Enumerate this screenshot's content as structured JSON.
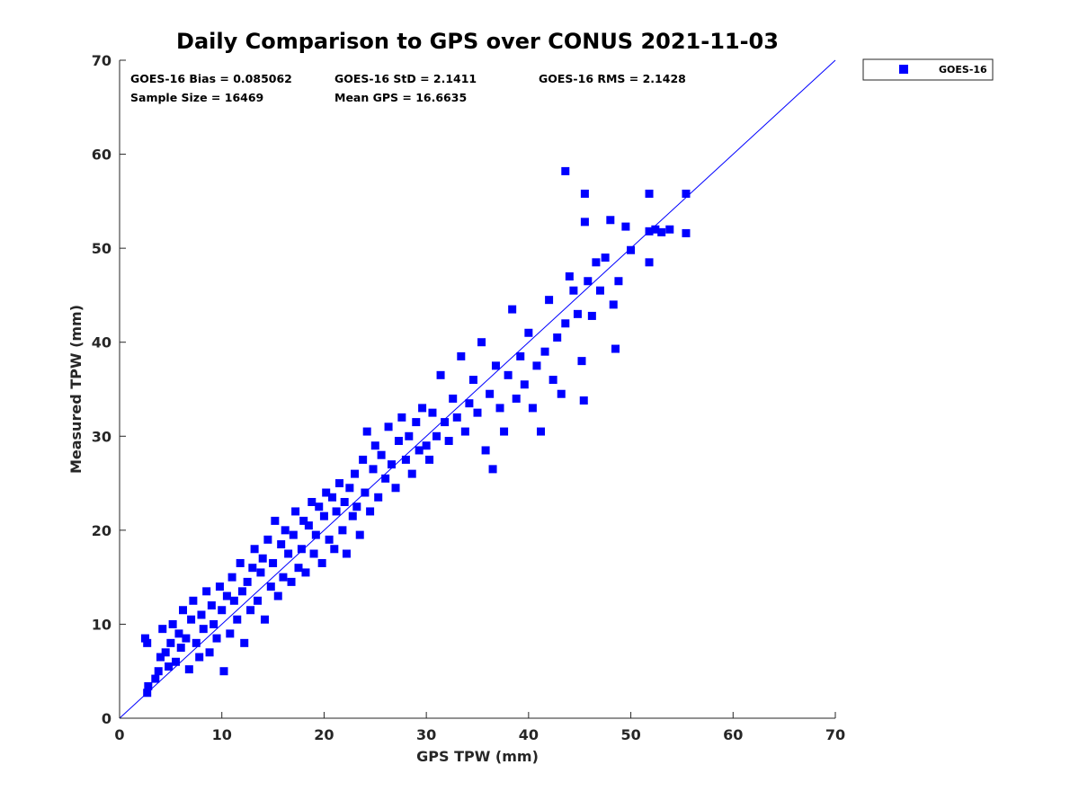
{
  "chart_data": {
    "type": "scatter",
    "title": "Daily Comparison to GPS over CONUS 2021-11-03",
    "xlabel": "GPS TPW (mm)",
    "ylabel": "Measured TPW (mm)",
    "xlim": [
      0,
      70
    ],
    "ylim": [
      0,
      70
    ],
    "xticks": [
      "0",
      "10",
      "20",
      "30",
      "40",
      "50",
      "60",
      "70"
    ],
    "yticks": [
      "0",
      "10",
      "20",
      "30",
      "40",
      "50",
      "60",
      "70"
    ],
    "grid": false,
    "legend_position": "outside-top-right",
    "reference_line": {
      "name": "1:1 line",
      "from": [
        0,
        0
      ],
      "to": [
        70,
        70
      ],
      "color": "#0000ff"
    },
    "annotations": [
      "GOES-16 Bias = 0.085062",
      "GOES-16 StD = 2.1411",
      "GOES-16 RMS = 2.1428",
      "Sample Size = 16469",
      "Mean GPS = 16.6635"
    ],
    "series": [
      {
        "name": "GOES-16",
        "marker": "square",
        "color": "#0000ff",
        "points": [
          [
            2.5,
            8.5
          ],
          [
            2.7,
            8.0
          ],
          [
            2.8,
            3.4
          ],
          [
            2.7,
            2.7
          ],
          [
            3.5,
            4.2
          ],
          [
            3.8,
            5.0
          ],
          [
            4.0,
            6.5
          ],
          [
            4.2,
            9.5
          ],
          [
            4.5,
            7.0
          ],
          [
            4.8,
            5.5
          ],
          [
            5.0,
            8.0
          ],
          [
            5.2,
            10.0
          ],
          [
            5.5,
            6.0
          ],
          [
            5.8,
            9.0
          ],
          [
            6.0,
            7.5
          ],
          [
            6.2,
            11.5
          ],
          [
            6.5,
            8.5
          ],
          [
            6.8,
            5.2
          ],
          [
            7.0,
            10.5
          ],
          [
            7.2,
            12.5
          ],
          [
            7.5,
            8.0
          ],
          [
            7.8,
            6.5
          ],
          [
            8.0,
            11.0
          ],
          [
            8.2,
            9.5
          ],
          [
            8.5,
            13.5
          ],
          [
            8.8,
            7.0
          ],
          [
            9.0,
            12.0
          ],
          [
            9.2,
            10.0
          ],
          [
            9.5,
            8.5
          ],
          [
            9.8,
            14.0
          ],
          [
            10.0,
            11.5
          ],
          [
            10.2,
            5.0
          ],
          [
            10.5,
            13.0
          ],
          [
            10.8,
            9.0
          ],
          [
            11.0,
            15.0
          ],
          [
            11.2,
            12.5
          ],
          [
            11.5,
            10.5
          ],
          [
            11.8,
            16.5
          ],
          [
            12.0,
            13.5
          ],
          [
            12.2,
            8.0
          ],
          [
            12.5,
            14.5
          ],
          [
            12.8,
            11.5
          ],
          [
            13.0,
            16.0
          ],
          [
            13.2,
            18.0
          ],
          [
            13.5,
            12.5
          ],
          [
            13.8,
            15.5
          ],
          [
            14.0,
            17.0
          ],
          [
            14.2,
            10.5
          ],
          [
            14.5,
            19.0
          ],
          [
            14.8,
            14.0
          ],
          [
            15.0,
            16.5
          ],
          [
            15.2,
            21.0
          ],
          [
            15.5,
            13.0
          ],
          [
            15.8,
            18.5
          ],
          [
            16.0,
            15.0
          ],
          [
            16.2,
            20.0
          ],
          [
            16.5,
            17.5
          ],
          [
            16.8,
            14.5
          ],
          [
            17.0,
            19.5
          ],
          [
            17.2,
            22.0
          ],
          [
            17.5,
            16.0
          ],
          [
            17.8,
            18.0
          ],
          [
            18.0,
            21.0
          ],
          [
            18.2,
            15.5
          ],
          [
            18.5,
            20.5
          ],
          [
            18.8,
            23.0
          ],
          [
            19.0,
            17.5
          ],
          [
            19.2,
            19.5
          ],
          [
            19.5,
            22.5
          ],
          [
            19.8,
            16.5
          ],
          [
            20.0,
            21.5
          ],
          [
            20.2,
            24.0
          ],
          [
            20.5,
            19.0
          ],
          [
            20.8,
            23.5
          ],
          [
            21.0,
            18.0
          ],
          [
            21.2,
            22.0
          ],
          [
            21.5,
            25.0
          ],
          [
            21.8,
            20.0
          ],
          [
            22.0,
            23.0
          ],
          [
            22.2,
            17.5
          ],
          [
            22.5,
            24.5
          ],
          [
            22.8,
            21.5
          ],
          [
            23.0,
            26.0
          ],
          [
            23.2,
            22.5
          ],
          [
            23.5,
            19.5
          ],
          [
            23.8,
            27.5
          ],
          [
            24.0,
            24.0
          ],
          [
            24.2,
            30.5
          ],
          [
            24.5,
            22.0
          ],
          [
            24.8,
            26.5
          ],
          [
            25.0,
            29.0
          ],
          [
            25.3,
            23.5
          ],
          [
            25.6,
            28.0
          ],
          [
            26.0,
            25.5
          ],
          [
            26.3,
            31.0
          ],
          [
            26.6,
            27.0
          ],
          [
            27.0,
            24.5
          ],
          [
            27.3,
            29.5
          ],
          [
            27.6,
            32.0
          ],
          [
            28.0,
            27.5
          ],
          [
            28.3,
            30.0
          ],
          [
            28.6,
            26.0
          ],
          [
            29.0,
            31.5
          ],
          [
            29.3,
            28.5
          ],
          [
            29.6,
            33.0
          ],
          [
            30.0,
            29.0
          ],
          [
            30.3,
            27.5
          ],
          [
            30.6,
            32.5
          ],
          [
            31.0,
            30.0
          ],
          [
            31.4,
            36.5
          ],
          [
            31.8,
            31.5
          ],
          [
            32.2,
            29.5
          ],
          [
            32.6,
            34.0
          ],
          [
            33.0,
            32.0
          ],
          [
            33.4,
            38.5
          ],
          [
            33.8,
            30.5
          ],
          [
            34.2,
            33.5
          ],
          [
            34.6,
            36.0
          ],
          [
            35.0,
            32.5
          ],
          [
            35.4,
            40.0
          ],
          [
            35.8,
            28.5
          ],
          [
            36.2,
            34.5
          ],
          [
            36.5,
            26.5
          ],
          [
            36.8,
            37.5
          ],
          [
            37.2,
            33.0
          ],
          [
            37.6,
            30.5
          ],
          [
            38.0,
            36.5
          ],
          [
            38.4,
            43.5
          ],
          [
            38.8,
            34.0
          ],
          [
            39.2,
            38.5
          ],
          [
            39.6,
            35.5
          ],
          [
            40.0,
            41.0
          ],
          [
            40.4,
            33.0
          ],
          [
            40.8,
            37.5
          ],
          [
            41.2,
            30.5
          ],
          [
            41.6,
            39.0
          ],
          [
            42.0,
            44.5
          ],
          [
            42.4,
            36.0
          ],
          [
            42.8,
            40.5
          ],
          [
            43.2,
            34.5
          ],
          [
            43.6,
            42.0
          ],
          [
            43.6,
            58.2
          ],
          [
            44.0,
            47.0
          ],
          [
            44.4,
            45.5
          ],
          [
            44.8,
            43.0
          ],
          [
            45.2,
            38.0
          ],
          [
            45.4,
            33.8
          ],
          [
            45.5,
            55.8
          ],
          [
            45.5,
            52.8
          ],
          [
            45.8,
            46.5
          ],
          [
            46.2,
            42.8
          ],
          [
            46.6,
            48.5
          ],
          [
            47.0,
            45.5
          ],
          [
            47.5,
            49.0
          ],
          [
            48.0,
            53.0
          ],
          [
            48.3,
            44.0
          ],
          [
            48.5,
            39.3
          ],
          [
            48.8,
            46.5
          ],
          [
            49.5,
            52.3
          ],
          [
            50.0,
            49.8
          ],
          [
            51.8,
            55.8
          ],
          [
            51.8,
            48.5
          ],
          [
            51.8,
            51.8
          ],
          [
            52.4,
            52.0
          ],
          [
            53.0,
            51.7
          ],
          [
            53.8,
            52.0
          ],
          [
            55.4,
            55.8
          ],
          [
            55.4,
            51.6
          ]
        ]
      }
    ]
  }
}
